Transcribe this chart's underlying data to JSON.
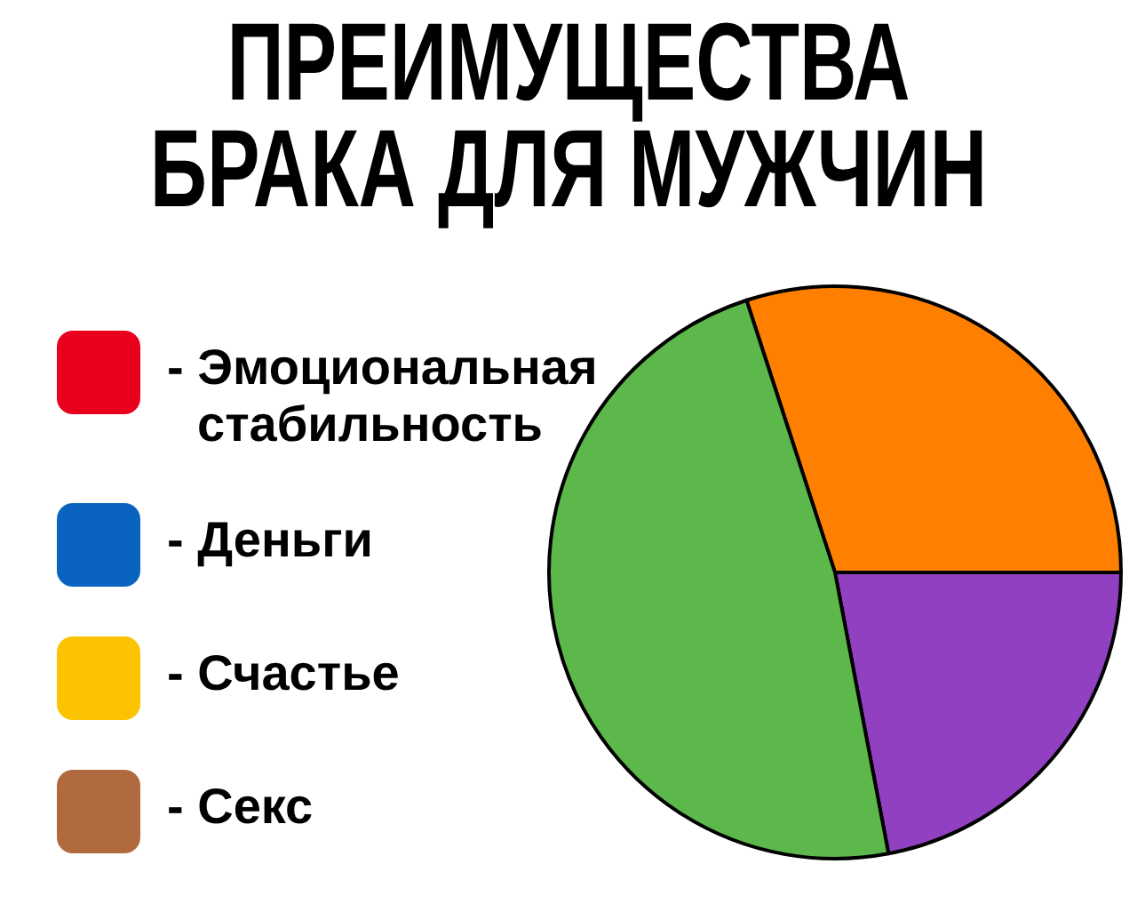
{
  "chart_data": {
    "type": "pie",
    "title": "ПРЕИМУЩЕСТВА БРАКА ДЛЯ МУЖЧИН",
    "categories": [
      "- Эмоциональная стабильность",
      "- Деньги",
      "- Счастье",
      "- Секс",
      null,
      null,
      null
    ],
    "values": [
      0,
      0,
      0,
      0,
      30,
      22,
      48
    ],
    "colors": [
      "#e8001c",
      "#0a64bf",
      "#fcc400",
      "#b06a3e",
      "#ff7f00",
      "#9040c0",
      "#5cb84a"
    ],
    "legend": "left"
  }
}
